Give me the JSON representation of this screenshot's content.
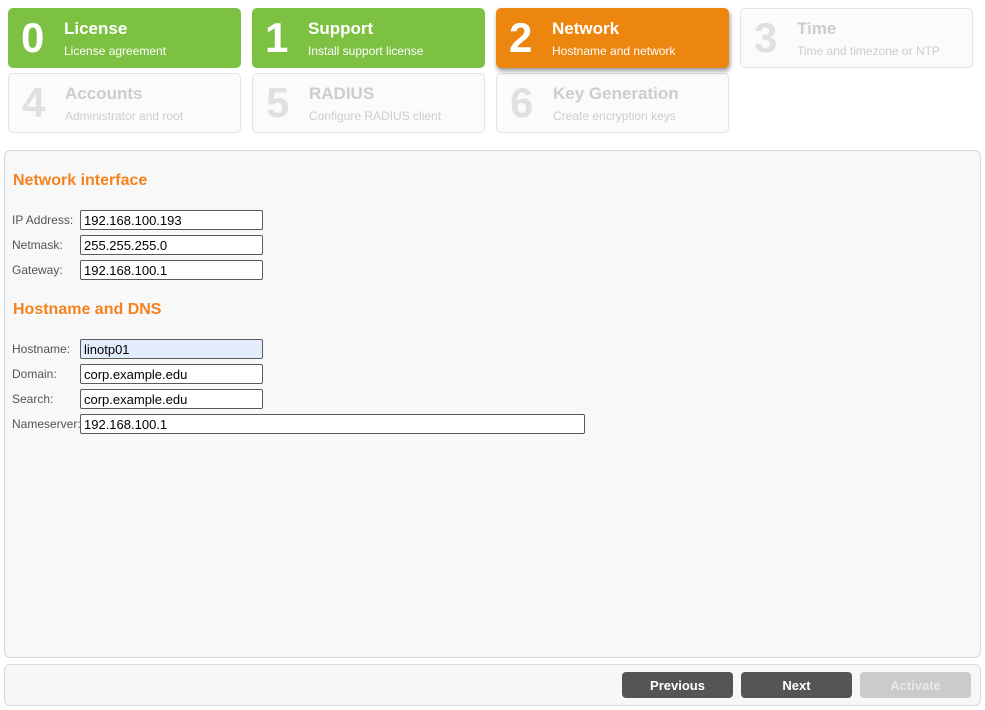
{
  "steps": [
    {
      "number": "0",
      "title": "License",
      "subtitle": "License agreement",
      "state": "done"
    },
    {
      "number": "1",
      "title": "Support",
      "subtitle": "Install support license",
      "state": "done"
    },
    {
      "number": "2",
      "title": "Network",
      "subtitle": "Hostname and network",
      "state": "active"
    },
    {
      "number": "3",
      "title": "Time",
      "subtitle": "Time and timezone or NTP",
      "state": "disabled"
    },
    {
      "number": "4",
      "title": "Accounts",
      "subtitle": "Administrator and root",
      "state": "disabled"
    },
    {
      "number": "5",
      "title": "RADIUS",
      "subtitle": "Configure RADIUS client",
      "state": "disabled"
    },
    {
      "number": "6",
      "title": "Key Generation",
      "subtitle": "Create encryption keys",
      "state": "disabled"
    }
  ],
  "sections": {
    "network": {
      "heading": "Network interface",
      "fields": [
        {
          "label": "IP Address:",
          "value": "192.168.100.193"
        },
        {
          "label": "Netmask:",
          "value": "255.255.255.0"
        },
        {
          "label": "Gateway:",
          "value": "192.168.100.1"
        }
      ]
    },
    "dns": {
      "heading": "Hostname and DNS",
      "fields": [
        {
          "label": "Hostname:",
          "value": "linotp01"
        },
        {
          "label": "Domain:",
          "value": "corp.example.edu"
        },
        {
          "label": "Search:",
          "value": "corp.example.edu"
        },
        {
          "label": "Nameserver:",
          "value": "192.168.100.1"
        }
      ]
    }
  },
  "footer": {
    "previous_label": "Previous",
    "next_label": "Next",
    "activate_label": "Activate"
  },
  "colors": {
    "step_done_green": "#7dc142",
    "step_active_orange": "#ec860f",
    "heading_orange": "#f5821f",
    "button_dark": "#555555",
    "button_disabled": "#cbcbcb",
    "autofill_blue": "#e3ecfa"
  }
}
